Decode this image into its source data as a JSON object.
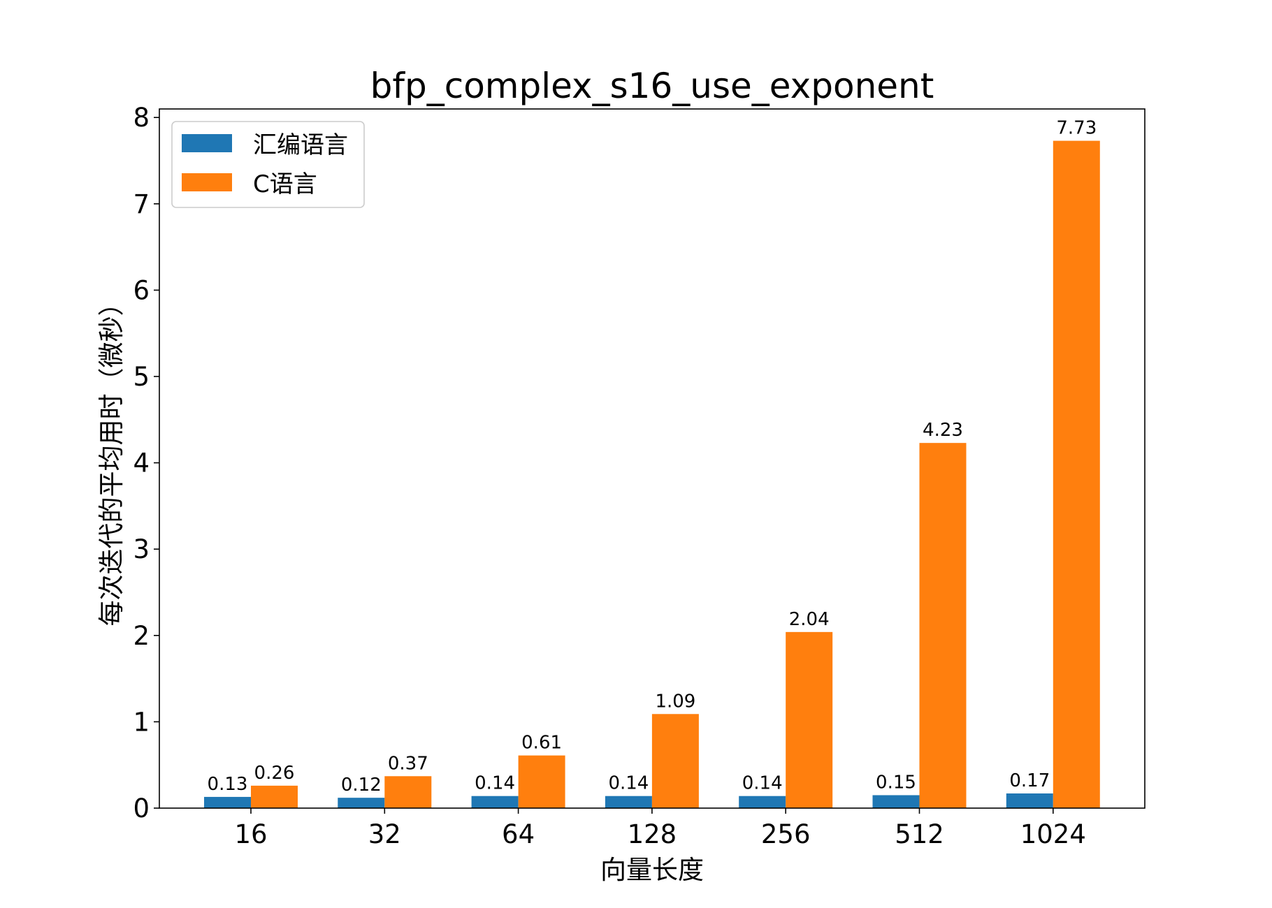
{
  "chart_data": {
    "type": "bar",
    "title": "bfp_complex_s16_use_exponent",
    "xlabel": "向量长度",
    "ylabel": "每次迭代的平均用时（微秒）",
    "categories": [
      "16",
      "32",
      "64",
      "128",
      "256",
      "512",
      "1024"
    ],
    "series": [
      {
        "name": "汇编语言",
        "color": "#1f77b4",
        "values": [
          0.13,
          0.12,
          0.14,
          0.14,
          0.14,
          0.15,
          0.17
        ]
      },
      {
        "name": "C语言",
        "color": "#ff7f0e",
        "values": [
          0.26,
          0.37,
          0.61,
          1.09,
          2.04,
          4.23,
          7.73
        ]
      }
    ],
    "ylim": [
      0,
      8.1
    ],
    "yticks": [
      0,
      1,
      2,
      3,
      4,
      5,
      6,
      7,
      8
    ],
    "grid": false,
    "legend_position": "upper left",
    "data_labels": true
  }
}
